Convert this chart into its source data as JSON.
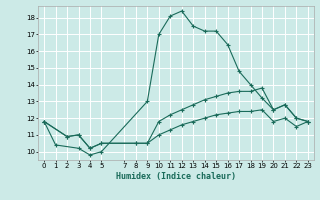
{
  "xlabel": "Humidex (Indice chaleur)",
  "bg_color": "#cceae7",
  "grid_color": "#ffffff",
  "line_color": "#1a6b5a",
  "xlim": [
    -0.5,
    23.5
  ],
  "ylim": [
    9.5,
    18.7
  ],
  "yticks": [
    10,
    11,
    12,
    13,
    14,
    15,
    16,
    17,
    18
  ],
  "xticks": [
    0,
    1,
    2,
    3,
    4,
    5,
    7,
    8,
    9,
    10,
    11,
    12,
    13,
    14,
    15,
    16,
    17,
    18,
    19,
    20,
    21,
    22,
    23
  ],
  "series1_x": [
    0,
    1,
    3,
    4,
    5,
    9,
    10,
    11,
    12,
    13,
    14,
    15,
    16,
    17,
    18,
    19,
    20,
    21,
    22,
    23
  ],
  "series1_y": [
    11.8,
    10.4,
    10.2,
    9.8,
    10.0,
    13.0,
    17.0,
    18.1,
    18.4,
    17.5,
    17.2,
    17.2,
    16.4,
    14.8,
    14.0,
    13.2,
    12.5,
    12.8,
    12.0,
    11.8
  ],
  "series2_x": [
    0,
    2,
    3,
    4,
    5,
    8,
    9,
    10,
    11,
    12,
    13,
    14,
    15,
    16,
    17,
    18,
    19,
    20,
    21,
    22,
    23
  ],
  "series2_y": [
    11.8,
    10.9,
    11.0,
    10.2,
    10.5,
    10.5,
    10.5,
    11.8,
    12.2,
    12.5,
    12.8,
    13.1,
    13.3,
    13.5,
    13.6,
    13.6,
    13.8,
    12.5,
    12.8,
    12.0,
    11.8
  ],
  "series3_x": [
    0,
    2,
    3,
    4,
    5,
    8,
    9,
    10,
    11,
    12,
    13,
    14,
    15,
    16,
    17,
    18,
    19,
    20,
    21,
    22,
    23
  ],
  "series3_y": [
    11.8,
    10.9,
    11.0,
    10.2,
    10.5,
    10.5,
    10.5,
    11.0,
    11.3,
    11.6,
    11.8,
    12.0,
    12.2,
    12.3,
    12.4,
    12.4,
    12.5,
    11.8,
    12.0,
    11.5,
    11.8
  ]
}
